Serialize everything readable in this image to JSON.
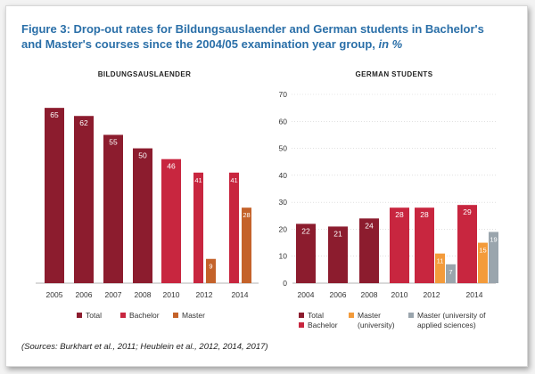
{
  "figure": {
    "title_main": "Figure 3: Drop-out rates for Bildungsauslaender and German students in Bachelor's and Master's courses since the 2004/05 examination year group,",
    "title_unit": "in %",
    "source": "(Sources: Burkhart et al., 2011; Heublein et al., 2012, 2014, 2017)"
  },
  "colors": {
    "total": "#8c1c2e",
    "bachelor": "#c8263f",
    "master": "#c4622a",
    "master_university": "#f39b3b",
    "master_uas": "#9aa5ad",
    "title": "#2a6fa8"
  },
  "chart_data": [
    {
      "type": "bar",
      "title": "BILDUNGSAUSLAENDER",
      "categories": [
        "2005",
        "2006",
        "2007",
        "2008",
        "2010",
        "2012",
        "2014"
      ],
      "ylim": [
        0,
        70
      ],
      "series": [
        {
          "name": "Total",
          "values": [
            65,
            62,
            55,
            50,
            null,
            null,
            null
          ]
        },
        {
          "name": "Bachelor",
          "values": [
            null,
            null,
            null,
            null,
            46,
            41,
            41
          ]
        },
        {
          "name": "Master",
          "values": [
            null,
            null,
            null,
            null,
            null,
            9,
            28
          ]
        }
      ],
      "legend": [
        "Total",
        "Bachelor",
        "Master"
      ],
      "legend_position": "bottom"
    },
    {
      "type": "bar",
      "title": "GERMAN STUDENTS",
      "categories": [
        "2004",
        "2006",
        "2008",
        "2010",
        "2012",
        "2014"
      ],
      "ylim": [
        0,
        70
      ],
      "yticks": [
        0,
        10,
        20,
        30,
        40,
        50,
        60,
        70
      ],
      "series": [
        {
          "name": "Total",
          "values": [
            22,
            21,
            24,
            null,
            null,
            null
          ]
        },
        {
          "name": "Bachelor",
          "values": [
            null,
            null,
            null,
            28,
            28,
            29
          ]
        },
        {
          "name": "Master (university)",
          "values": [
            null,
            null,
            null,
            null,
            11,
            15
          ]
        },
        {
          "name": "Master (university of applied sciences)",
          "values": [
            null,
            null,
            null,
            null,
            7,
            19
          ]
        }
      ],
      "legend": [
        "Total",
        "Bachelor",
        "Master (university)",
        "Master (university of applied sciences)"
      ],
      "legend_position": "bottom"
    }
  ],
  "legend_text": {
    "left": [
      "Total",
      "Bachelor",
      "Master"
    ],
    "right": {
      "total": "Total",
      "bachelor": "Bachelor",
      "master_uni_1": "Master",
      "master_uni_2": "(university)",
      "master_uas_1": "Master (university of",
      "master_uas_2": "applied sciences)"
    }
  }
}
